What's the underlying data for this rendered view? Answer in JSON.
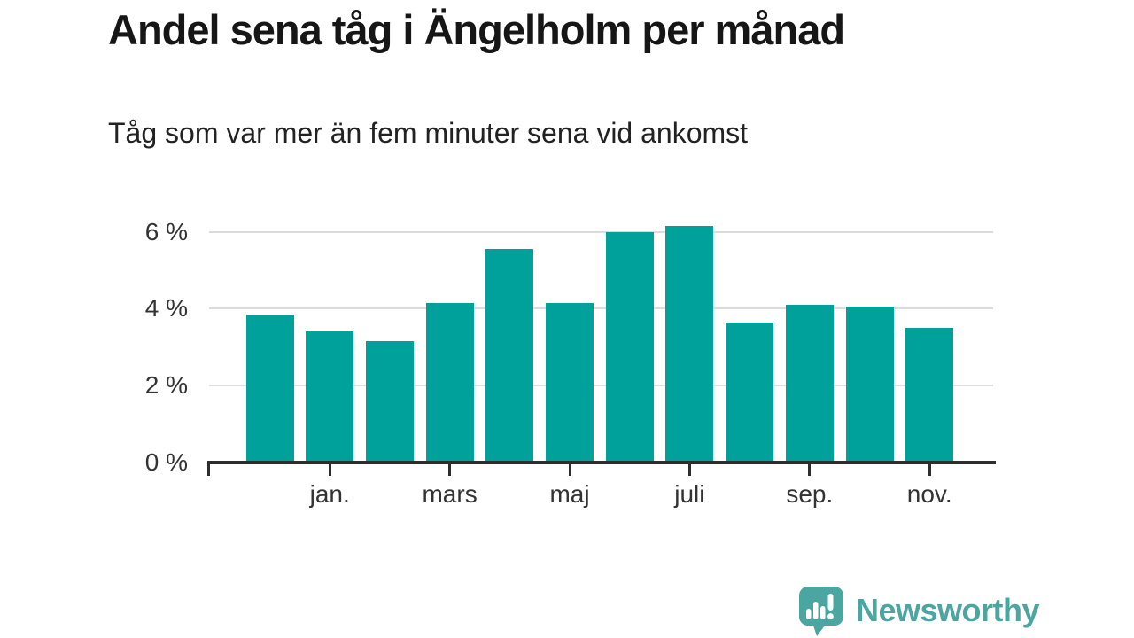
{
  "chart_data": {
    "type": "bar",
    "title": "Andel sena tåg i Ängelholm per månad",
    "subtitle": "Tåg som var mer än fem minuter sena vid ankomst",
    "values_pct": [
      3.85,
      3.4,
      3.15,
      4.15,
      5.55,
      4.15,
      6.0,
      6.15,
      3.65,
      4.1,
      4.05,
      3.5
    ],
    "bar_count": 12,
    "x_ticks": [
      {
        "label": "jan.",
        "bar_index": 1
      },
      {
        "label": "mars",
        "bar_index": 3
      },
      {
        "label": "maj",
        "bar_index": 5
      },
      {
        "label": "juli",
        "bar_index": 7
      },
      {
        "label": "sep.",
        "bar_index": 9
      },
      {
        "label": "nov.",
        "bar_index": 11
      }
    ],
    "y_ticks": [
      {
        "label": "0 %",
        "value": 0
      },
      {
        "label": "2 %",
        "value": 2
      },
      {
        "label": "4 %",
        "value": 4
      },
      {
        "label": "6 %",
        "value": 6
      }
    ],
    "gridlines_at": [
      2,
      4,
      6
    ],
    "ylim": [
      0,
      6.5
    ],
    "grid": true,
    "legend": "none",
    "bar_color": "#00a19a",
    "axis_color": "#2e2e2e",
    "gridline_color": "#dcdcdc",
    "tick_label_color": "#333333"
  },
  "footer": {
    "brand": "Newsworthy",
    "brand_color": "#4ba5a1",
    "logo_icon": "newsworthy-speech-bubble-bar-chart-icon"
  }
}
